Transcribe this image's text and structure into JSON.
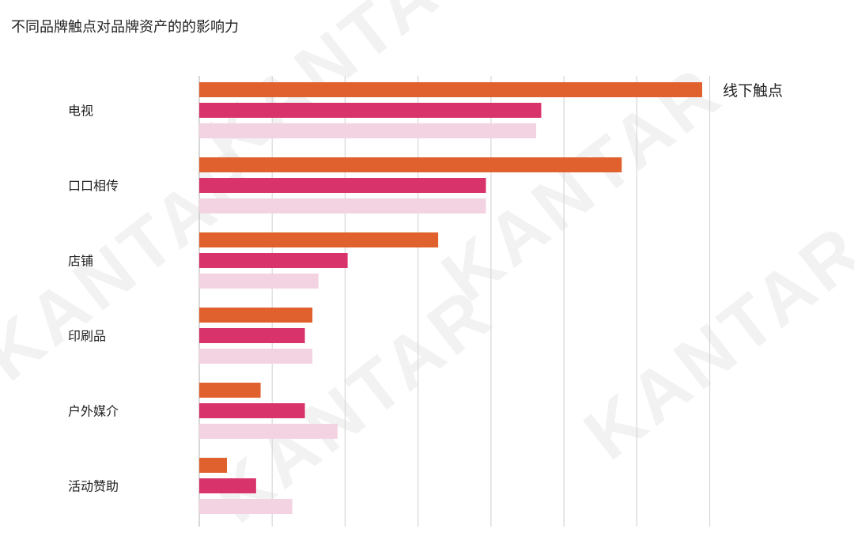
{
  "chart_data": {
    "type": "bar",
    "orientation": "horizontal",
    "title": "不同品牌触点对品牌资产的的影响力",
    "categories": [
      "电视",
      "口口相传",
      "店铺",
      "印刷品",
      "户外媒介",
      "活动赞助"
    ],
    "series": [
      {
        "name": "线下触点",
        "color": "#e0612e",
        "values": [
          100,
          84,
          47.5,
          22.5,
          12.2,
          5.5
        ]
      },
      {
        "color": "#d8336a",
        "values": [
          68,
          57,
          29.5,
          21,
          21,
          11.3
        ]
      },
      {
        "color": "#f3d3e2",
        "values": [
          67,
          57,
          23.7,
          22.5,
          27.5,
          18.5
        ]
      }
    ],
    "xlim": [
      0,
      115
    ],
    "grid": true,
    "legend": "right of top bar"
  },
  "watermark": {
    "text": "KANTAR",
    "color": "#e8e8e8"
  }
}
